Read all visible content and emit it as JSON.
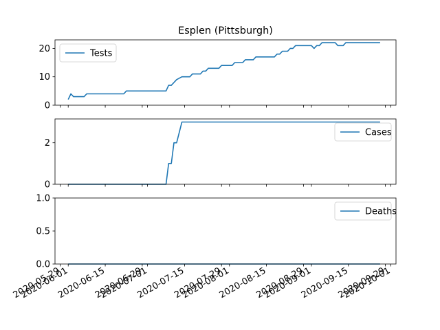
{
  "chart_data": {
    "type": "line",
    "title": "Esplen (Pittsburgh)",
    "line_color": "#1f77b4",
    "x_ticks": [
      "2020-05-29",
      "2020-06-01",
      "2020-06-15",
      "2020-06-29",
      "2020-07-01",
      "2020-07-15",
      "2020-07-29",
      "2020-08-01",
      "2020-08-15",
      "2020-08-29",
      "2020-09-01",
      "2020-09-15",
      "2020-09-29",
      "2020-10-01"
    ],
    "x_range": [
      "2020-05-27",
      "2020-10-03"
    ],
    "panels": [
      {
        "series_name": "Tests",
        "legend": "upper-left",
        "ylim": [
          0,
          23.0
        ],
        "yticks": [
          0,
          10,
          20
        ],
        "ytick_labels": [
          "0",
          "10",
          "20"
        ],
        "points": [
          [
            "2020-06-01",
            2
          ],
          [
            "2020-06-02",
            4
          ],
          [
            "2020-06-03",
            3
          ],
          [
            "2020-06-07",
            3
          ],
          [
            "2020-06-08",
            4
          ],
          [
            "2020-06-22",
            4
          ],
          [
            "2020-06-23",
            5
          ],
          [
            "2020-07-08",
            5
          ],
          [
            "2020-07-09",
            7
          ],
          [
            "2020-07-10",
            7
          ],
          [
            "2020-07-11",
            8
          ],
          [
            "2020-07-12",
            9
          ],
          [
            "2020-07-14",
            10
          ],
          [
            "2020-07-17",
            10
          ],
          [
            "2020-07-18",
            11
          ],
          [
            "2020-07-21",
            11
          ],
          [
            "2020-07-22",
            12
          ],
          [
            "2020-07-23",
            12
          ],
          [
            "2020-07-24",
            13
          ],
          [
            "2020-07-28",
            13
          ],
          [
            "2020-07-29",
            14
          ],
          [
            "2020-08-02",
            14
          ],
          [
            "2020-08-03",
            15
          ],
          [
            "2020-08-06",
            15
          ],
          [
            "2020-08-07",
            16
          ],
          [
            "2020-08-10",
            16
          ],
          [
            "2020-08-11",
            17
          ],
          [
            "2020-08-18",
            17
          ],
          [
            "2020-08-19",
            18
          ],
          [
            "2020-08-20",
            18
          ],
          [
            "2020-08-21",
            19
          ],
          [
            "2020-08-23",
            19
          ],
          [
            "2020-08-24",
            20
          ],
          [
            "2020-08-25",
            20
          ],
          [
            "2020-08-26",
            21
          ],
          [
            "2020-09-01",
            21
          ],
          [
            "2020-09-02",
            20
          ],
          [
            "2020-09-03",
            21
          ],
          [
            "2020-09-04",
            21
          ],
          [
            "2020-09-05",
            22
          ],
          [
            "2020-09-10",
            22
          ],
          [
            "2020-09-11",
            21
          ],
          [
            "2020-09-13",
            21
          ],
          [
            "2020-09-14",
            22
          ],
          [
            "2020-09-27",
            22
          ]
        ]
      },
      {
        "series_name": "Cases",
        "legend": "upper-right",
        "ylim": [
          0,
          3.15
        ],
        "yticks": [
          0,
          2
        ],
        "ytick_labels": [
          "0",
          "2"
        ],
        "points": [
          [
            "2020-06-01",
            0
          ],
          [
            "2020-07-08",
            0
          ],
          [
            "2020-07-09",
            1
          ],
          [
            "2020-07-10",
            1
          ],
          [
            "2020-07-11",
            2
          ],
          [
            "2020-07-12",
            2
          ],
          [
            "2020-07-14",
            3
          ],
          [
            "2020-09-27",
            3
          ]
        ]
      },
      {
        "series_name": "Deaths",
        "legend": "upper-right",
        "ylim": [
          0,
          1.0
        ],
        "yticks": [
          0,
          0.5,
          1.0
        ],
        "ytick_labels": [
          "0.0",
          "0.5",
          "1.0"
        ],
        "points": [
          [
            "2020-06-01",
            0
          ],
          [
            "2020-09-27",
            0
          ]
        ]
      }
    ]
  }
}
